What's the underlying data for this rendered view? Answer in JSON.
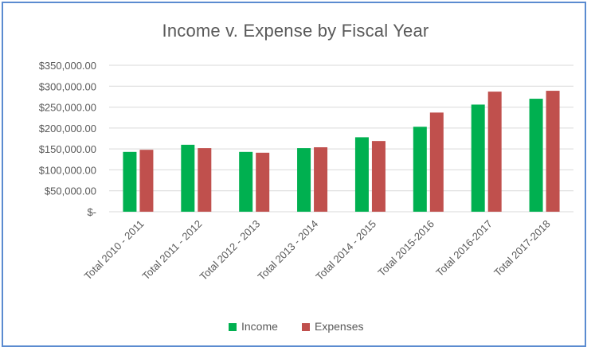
{
  "colors": {
    "income": "#00b050",
    "expenses": "#c0504d",
    "gridline": "#d9d9d9",
    "text": "#595959",
    "frame": "#5b8bd0"
  },
  "chart_data": {
    "type": "bar",
    "title": "Income v. Expense by Fiscal Year",
    "categories": [
      "Total 2010 - 2011",
      "Total 2011 - 2012",
      "Total 2012 - 2013",
      "Total 2013 - 2014",
      "Total 2014 - 2015",
      "Total 2015-2016",
      "Total 2016-2017",
      "Total 2017-2018"
    ],
    "series": [
      {
        "name": "Income",
        "values": [
          143000,
          160000,
          143000,
          152000,
          178000,
          203000,
          256000,
          270000
        ]
      },
      {
        "name": "Expenses",
        "values": [
          148000,
          152000,
          141000,
          154000,
          169000,
          237000,
          287000,
          289000
        ]
      }
    ],
    "yticks": [
      0,
      50000,
      100000,
      150000,
      200000,
      250000,
      300000,
      350000
    ],
    "ytick_labels": [
      "$-",
      "$50,000.00",
      "$100,000.00",
      "$150,000.00",
      "$200,000.00",
      "$250,000.00",
      "$300,000.00",
      "$350,000.00"
    ],
    "ylim": [
      0,
      350000
    ],
    "xlabel": "",
    "ylabel": "",
    "grid": true,
    "legend": "bottom"
  }
}
